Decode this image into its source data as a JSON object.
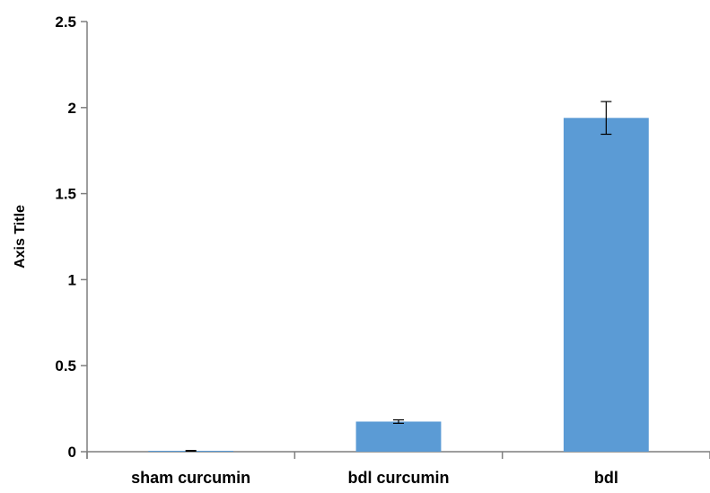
{
  "chart_data": {
    "type": "bar",
    "title": "",
    "xlabel": "",
    "ylabel": "Axis Title",
    "categories": [
      "sham curcumin",
      "bdl curcumin",
      "bdl"
    ],
    "series": [
      {
        "values": [
          0.005,
          0.175,
          1.94
        ],
        "error": [
          0.002,
          0.01,
          0.095
        ]
      }
    ],
    "ylim": [
      0,
      2.5
    ],
    "yticks": [
      0,
      0.5,
      1,
      1.5,
      2,
      2.5
    ],
    "ytick_labels": [
      "0",
      "0.5",
      "1",
      "1.5",
      "2",
      "2.5"
    ],
    "grid": false,
    "legend": "none",
    "colors": {
      "bar": "#5b9bd5",
      "axis": "#7f7f7f",
      "error_bar": "#000000"
    }
  }
}
